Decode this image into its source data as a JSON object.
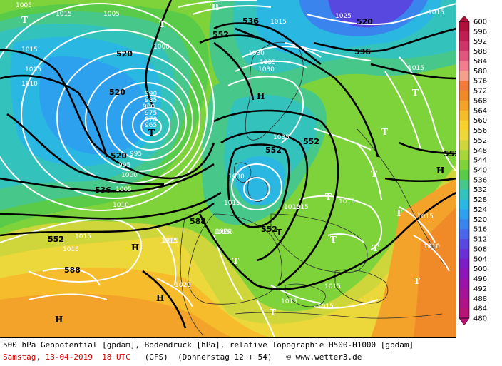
{
  "footer": {
    "description": "500 hPa Geopotential [gpdam], Bodendruck [hPa], relative Topographie H500-H1000 [gpdam]",
    "date": "Samstag, 13-04-2019  18 UTC",
    "model": "(GFS)",
    "forecast": "(Donnerstag 12 + 54)",
    "credit": "© www.wetter3.de"
  },
  "colorbar": {
    "labels": [
      "600",
      "596",
      "592",
      "588",
      "584",
      "580",
      "576",
      "572",
      "568",
      "564",
      "560",
      "556",
      "552",
      "548",
      "544",
      "540",
      "536",
      "532",
      "528",
      "524",
      "520",
      "516",
      "512",
      "508",
      "504",
      "500",
      "496",
      "492",
      "488",
      "484",
      "480"
    ],
    "colors": [
      "#b0103c",
      "#c01e52",
      "#cf3468",
      "#e0567c",
      "#f07e8c",
      "#f5a08c",
      "#f27a3a",
      "#f08a28",
      "#f3a22a",
      "#f7bc2c",
      "#f8d12f",
      "#ecd83a",
      "#cfd63c",
      "#a8d53a",
      "#7ed33a",
      "#5acb48",
      "#48c78a",
      "#34c2bd",
      "#2ab8e2",
      "#2ea1ee",
      "#3a84ee",
      "#4a66ea",
      "#5848e0",
      "#6a30d6",
      "#7c1ec8",
      "#8c16b8",
      "#9a14a8",
      "#a41498",
      "#ae1488",
      "#b81478"
    ]
  },
  "pressure_labels": [
    "1005",
    "1015",
    "1005",
    "1000",
    "1015",
    "1005",
    "1010",
    "990",
    "985",
    "980",
    "975",
    "970",
    "965",
    "995",
    "995",
    "1000",
    "1005",
    "1010",
    "1015",
    "1015",
    "1020",
    "1015",
    "1015",
    "1015",
    "1020",
    "1025",
    "1030",
    "1035",
    "1030",
    "1035",
    "1030",
    "1015",
    "1015",
    "1010",
    "1020",
    "1015",
    "1015",
    "1015",
    "1015",
    "1015",
    "1015",
    "1010",
    "1020",
    "1015",
    "1015",
    "1015"
  ],
  "height_labels": [
    "520",
    "520",
    "520",
    "552",
    "536",
    "552",
    "536",
    "536",
    "552",
    "552",
    "588",
    "552",
    "520",
    "552",
    "552",
    "588",
    "536",
    "552"
  ],
  "centers": [
    "T",
    "T",
    "T",
    "T",
    "H",
    "T",
    "T",
    "T",
    "T",
    "T",
    "T",
    "T",
    "H",
    "H",
    "H",
    "T",
    "T",
    "T",
    "T",
    "H",
    "H",
    "T",
    "T"
  ]
}
